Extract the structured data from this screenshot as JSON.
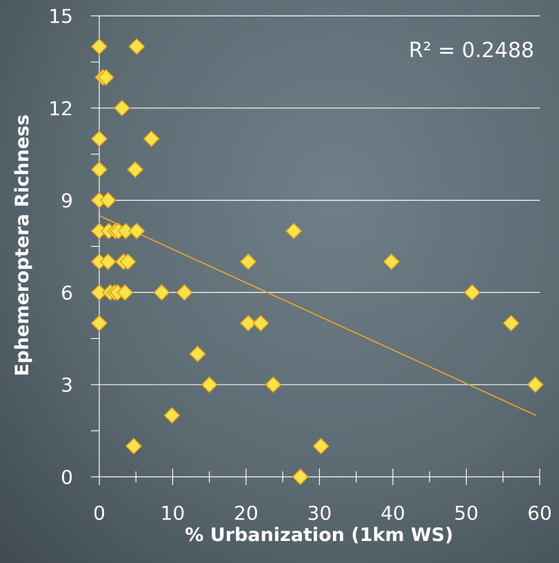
{
  "chart_data": {
    "type": "scatter",
    "xlabel": "% Urbanization (1km WS)",
    "ylabel": "Ephemeroptera Richness",
    "annotation": "R² = 0.2488",
    "xlim": [
      0,
      60
    ],
    "ylim": [
      0,
      15
    ],
    "x_ticks": [
      "0",
      "10",
      "20",
      "30",
      "40",
      "50",
      "60"
    ],
    "y_ticks": [
      "0",
      "3",
      "6",
      "9",
      "12",
      "15"
    ],
    "grid": "horizontal",
    "marker_color": "#f7e34a",
    "marker_edge_color": "#e8a31a",
    "trendline_color": "#f5a623",
    "trendline": {
      "x": [
        0,
        59.5
      ],
      "y": [
        8.5,
        2.0
      ]
    },
    "points": [
      {
        "x": 0,
        "y": 14
      },
      {
        "x": 5.1,
        "y": 14
      },
      {
        "x": 0.5,
        "y": 13
      },
      {
        "x": 0.9,
        "y": 13
      },
      {
        "x": 3.1,
        "y": 12
      },
      {
        "x": 0,
        "y": 11
      },
      {
        "x": 7.1,
        "y": 11
      },
      {
        "x": 0,
        "y": 10
      },
      {
        "x": 4.9,
        "y": 10
      },
      {
        "x": 0,
        "y": 9
      },
      {
        "x": 1.2,
        "y": 9
      },
      {
        "x": 0,
        "y": 8
      },
      {
        "x": 1.3,
        "y": 8
      },
      {
        "x": 2.2,
        "y": 8
      },
      {
        "x": 2.6,
        "y": 8
      },
      {
        "x": 3.6,
        "y": 8
      },
      {
        "x": 5.1,
        "y": 8
      },
      {
        "x": 26.5,
        "y": 8
      },
      {
        "x": 0,
        "y": 7
      },
      {
        "x": 1.2,
        "y": 7
      },
      {
        "x": 3.3,
        "y": 7
      },
      {
        "x": 3.9,
        "y": 7
      },
      {
        "x": 20.3,
        "y": 7
      },
      {
        "x": 39.8,
        "y": 7
      },
      {
        "x": 0,
        "y": 6
      },
      {
        "x": 1.5,
        "y": 6
      },
      {
        "x": 2.1,
        "y": 6
      },
      {
        "x": 2.5,
        "y": 6
      },
      {
        "x": 3.5,
        "y": 6
      },
      {
        "x": 8.5,
        "y": 6
      },
      {
        "x": 11.6,
        "y": 6
      },
      {
        "x": 50.8,
        "y": 6
      },
      {
        "x": 0,
        "y": 5
      },
      {
        "x": 20.3,
        "y": 5
      },
      {
        "x": 22.0,
        "y": 5
      },
      {
        "x": 56.1,
        "y": 5
      },
      {
        "x": 13.4,
        "y": 4
      },
      {
        "x": 15.0,
        "y": 3
      },
      {
        "x": 23.7,
        "y": 3
      },
      {
        "x": 59.4,
        "y": 3
      },
      {
        "x": 9.9,
        "y": 2
      },
      {
        "x": 4.7,
        "y": 1
      },
      {
        "x": 30.2,
        "y": 1
      },
      {
        "x": 27.4,
        "y": 0
      }
    ]
  }
}
